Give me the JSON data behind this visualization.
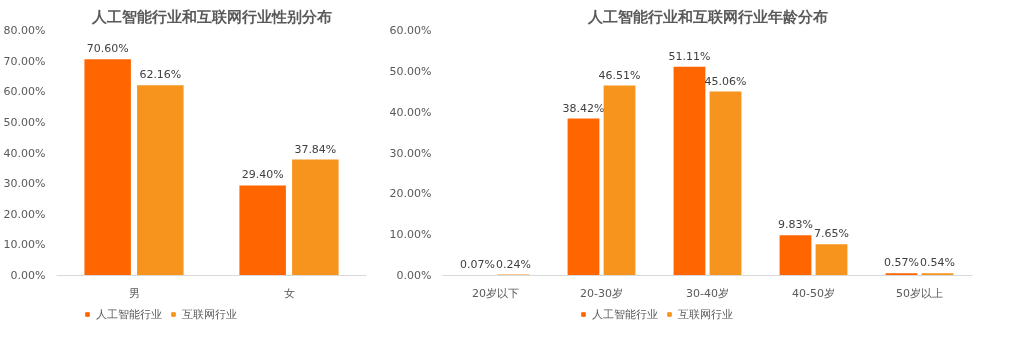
{
  "chart_data": [
    {
      "type": "bar",
      "title": "人工智能行业和互联网行业性别分布",
      "categories": [
        "男",
        "女"
      ],
      "series": [
        {
          "name": "人工智能行业",
          "color": "#ff6600",
          "values": [
            70.6,
            29.4
          ],
          "value_labels": [
            "70.60%",
            "29.40%"
          ]
        },
        {
          "name": "互联网行业",
          "color": "#f7941d",
          "values": [
            62.16,
            37.84
          ],
          "value_labels": [
            "62.16%",
            "37.84%"
          ]
        }
      ],
      "ylim": [
        0,
        80
      ],
      "yticks": [
        {
          "value": 0,
          "label": "0.00%"
        },
        {
          "value": 10,
          "label": "10.00%"
        },
        {
          "value": 20,
          "label": "20.00%"
        },
        {
          "value": 30,
          "label": "30.00%"
        },
        {
          "value": 40,
          "label": "40.00%"
        },
        {
          "value": 50,
          "label": "50.00%"
        },
        {
          "value": 60,
          "label": "60.00%"
        },
        {
          "value": 70,
          "label": "70.00%"
        },
        {
          "value": 80,
          "label": "80.00%"
        }
      ],
      "grid": false,
      "legend": "bottom"
    },
    {
      "type": "bar",
      "title": "人工智能行业和互联网行业年龄分布",
      "categories": [
        "20岁以下",
        "20-30岁",
        "30-40岁",
        "40-50岁",
        "50岁以上"
      ],
      "series": [
        {
          "name": "人工智能行业",
          "color": "#ff6600",
          "values": [
            0.07,
            38.42,
            51.11,
            9.83,
            0.57
          ],
          "value_labels": [
            "0.07%",
            "38.42%",
            "51.11%",
            "9.83%",
            "0.57%"
          ]
        },
        {
          "name": "互联网行业",
          "color": "#f7941d",
          "values": [
            0.24,
            46.51,
            45.06,
            7.65,
            0.54
          ],
          "value_labels": [
            "0.24%",
            "46.51%",
            "45.06%",
            "7.65%",
            "0.54%"
          ]
        }
      ],
      "ylim": [
        0,
        60
      ],
      "yticks": [
        {
          "value": 0,
          "label": "0.00%"
        },
        {
          "value": 10,
          "label": "10.00%"
        },
        {
          "value": 20,
          "label": "20.00%"
        },
        {
          "value": 30,
          "label": "30.00%"
        },
        {
          "value": 40,
          "label": "40.00%"
        },
        {
          "value": 50,
          "label": "50.00%"
        },
        {
          "value": 60,
          "label": "60.00%"
        }
      ],
      "grid": false,
      "legend": "bottom"
    }
  ]
}
